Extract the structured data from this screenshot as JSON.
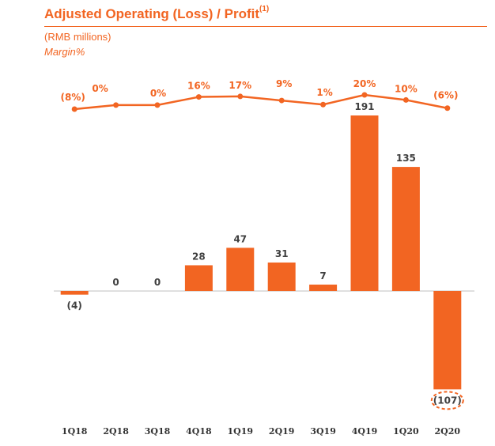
{
  "header": {
    "title": "Adjusted Operating (Loss) / Profit",
    "title_footnote": "(1)",
    "unit": "(RMB millions)",
    "margin_label": "Margin%"
  },
  "colors": {
    "accent": "#f26522",
    "text": "#404040"
  },
  "chart_data": {
    "type": "bar",
    "title": "Adjusted Operating (Loss) / Profit",
    "ylabel": "RMB millions",
    "categories": [
      "1Q18",
      "2Q18",
      "3Q18",
      "4Q18",
      "1Q19",
      "2Q19",
      "3Q19",
      "4Q19",
      "1Q20",
      "2Q20"
    ],
    "values": [
      -4,
      0,
      0,
      28,
      47,
      31,
      7,
      191,
      135,
      -107
    ],
    "value_labels": [
      "(4)",
      "0",
      "0",
      "28",
      "47",
      "31",
      "7",
      "191",
      "135",
      "(107)"
    ],
    "highlighted_index": 9,
    "ylim": [
      -107,
      191
    ],
    "secondary_series": {
      "name": "Margin%",
      "type": "line",
      "values": [
        -8,
        0,
        0,
        16,
        17,
        9,
        1,
        20,
        10,
        -6
      ],
      "labels": [
        "(8%)",
        "0%",
        "0%",
        "16%",
        "17%",
        "9%",
        "1%",
        "20%",
        "10%",
        "(6%)"
      ]
    }
  }
}
